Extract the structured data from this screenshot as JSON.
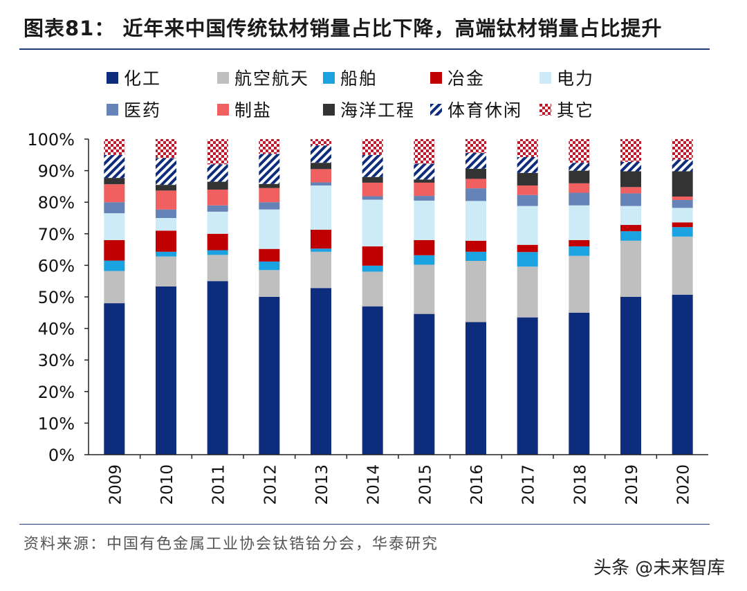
{
  "header": {
    "title": "图表81： 近年来中国传统钛材销量占比下降，高端钛材销量占比提升"
  },
  "footer": {
    "source": "资料来源：中国有色金属工业协会钛锆铪分会，华泰研究",
    "watermark": "头条 @未来智库"
  },
  "chart_data": {
    "type": "bar",
    "stacked": true,
    "categories": [
      "2009",
      "2010",
      "2011",
      "2012",
      "2013",
      "2014",
      "2015",
      "2016",
      "2017",
      "2018",
      "2019",
      "2020"
    ],
    "ylim": [
      0,
      100
    ],
    "ytick_labels": [
      "0%",
      "10%",
      "20%",
      "30%",
      "40%",
      "50%",
      "60%",
      "70%",
      "80%",
      "90%",
      "100%"
    ],
    "legend_position": "top",
    "series": [
      {
        "name": "化工",
        "color": "#0d2c7c",
        "pattern": "solid",
        "values": [
          48,
          53.3,
          55,
          50,
          52.8,
          47,
          44.6,
          42,
          43.5,
          45,
          50,
          50.7
        ]
      },
      {
        "name": "航空航天",
        "color": "#bfbfbf",
        "pattern": "solid",
        "values": [
          10.2,
          9.5,
          8.3,
          8.5,
          11.5,
          11,
          15.6,
          19.4,
          16.1,
          18,
          17.8,
          18.4
        ]
      },
      {
        "name": "船舶",
        "color": "#1aa3e0",
        "pattern": "solid",
        "values": [
          3.3,
          1.5,
          1.5,
          2.7,
          1,
          1.9,
          3,
          2.9,
          4.6,
          3,
          3,
          3
        ]
      },
      {
        "name": "冶金",
        "color": "#c00000",
        "pattern": "solid",
        "values": [
          6.5,
          6.7,
          5.2,
          4,
          6,
          6.1,
          4.8,
          3.5,
          2.3,
          2,
          2,
          1.5
        ]
      },
      {
        "name": "电力",
        "color": "#cdebf7",
        "pattern": "solid",
        "values": [
          8.5,
          4,
          7,
          12.5,
          14,
          14.8,
          12.5,
          12.6,
          12.3,
          11,
          6,
          4.6
        ]
      },
      {
        "name": "医药",
        "color": "#6683b8",
        "pattern": "solid",
        "values": [
          3.5,
          2.7,
          2,
          2.3,
          1,
          1.1,
          1.5,
          4,
          3.5,
          4,
          4,
          2.5
        ]
      },
      {
        "name": "制盐",
        "color": "#f06060",
        "pattern": "solid",
        "values": [
          5.7,
          6,
          5,
          4.5,
          4.2,
          4.3,
          4.2,
          3,
          3,
          3,
          2,
          1.1
        ]
      },
      {
        "name": "海洋工程",
        "color": "#333333",
        "pattern": "solid",
        "values": [
          2,
          1.8,
          2.5,
          1.3,
          2,
          1.8,
          1,
          3.2,
          4,
          4,
          5,
          8
        ]
      },
      {
        "name": "体育休闲",
        "color": "#0d2c7c",
        "pattern": "diagonal",
        "values": [
          7.3,
          8.5,
          5.5,
          9.5,
          5.5,
          7,
          5,
          5,
          5,
          2.5,
          3,
          3.7
        ]
      },
      {
        "name": "其它",
        "color": "#c0192c",
        "pattern": "checker",
        "values": [
          5,
          6,
          8,
          4.7,
          2,
          5,
          7.8,
          4.4,
          5.7,
          7.5,
          7.2,
          6.5
        ]
      }
    ]
  }
}
